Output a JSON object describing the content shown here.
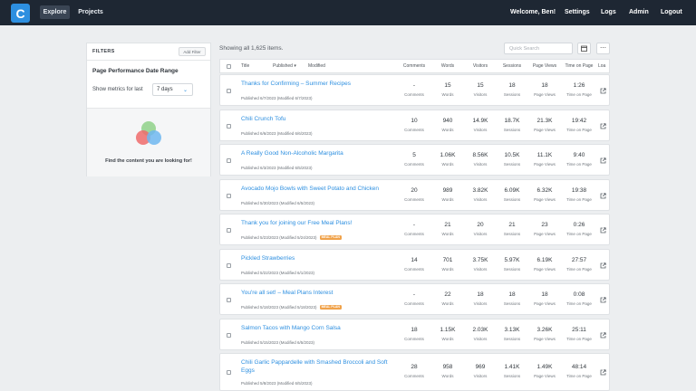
{
  "nav": {
    "logo_letter": "C",
    "tabs": [
      {
        "label": "Explore"
      },
      {
        "label": "Projects"
      }
    ],
    "greeting": "Welcome, Ben!",
    "links": [
      {
        "label": "Settings"
      },
      {
        "label": "Logs"
      },
      {
        "label": "Admin"
      },
      {
        "label": "Logout"
      }
    ]
  },
  "filters": {
    "title": "FILTERS",
    "add_filter": "Add Filter",
    "range_title": "Page Performance Date Range",
    "show_label": "Show metrics for last",
    "days_value": "7 days",
    "find_text": "Find the content you are looking for!"
  },
  "main": {
    "showing": "Showing all 1,625 items.",
    "search_placeholder": "Quick Search",
    "columns": {
      "title": "Title",
      "published": "Published ▾",
      "modified": "Modified",
      "comments": "Comments",
      "words": "Words",
      "visitors": "Visitors",
      "sessions": "Sessions",
      "page_views": "Page Views",
      "time_on_page": "Time on Page",
      "extra": "Loa"
    },
    "metric_labels": {
      "comments": "Comments",
      "words": "Words",
      "visitors": "Visitors",
      "sessions": "Sessions",
      "page_views": "Page Views",
      "time_on_page": "Time on Page"
    },
    "rows": [
      {
        "title": "Thanks for Confirming – Summer Recipes",
        "meta": "Published 6/7/2023 (Modified 6/7/2023)",
        "tag": "",
        "comments": "-",
        "words": "15",
        "visitors": "15",
        "sessions": "18",
        "page_views": "18",
        "time_on_page": "1:26"
      },
      {
        "title": "Chili Crunch Tofu",
        "meta": "Published 6/6/2023 (Modified 6/6/2023)",
        "tag": "",
        "comments": "10",
        "words": "940",
        "visitors": "14.9K",
        "sessions": "18.7K",
        "page_views": "21.3K",
        "time_on_page": "19:42"
      },
      {
        "title": "A Really Good Non-Alcoholic Margarita",
        "meta": "Published 6/3/2023 (Modified 6/5/2023)",
        "tag": "",
        "comments": "5",
        "words": "1.06K",
        "visitors": "8.56K",
        "sessions": "10.5K",
        "page_views": "11.1K",
        "time_on_page": "9:40"
      },
      {
        "title": "Avocado Mojo Bowls with Sweet Potato and Chicken",
        "meta": "Published 5/30/2023 (Modified 6/5/2023)",
        "tag": "",
        "comments": "20",
        "words": "989",
        "visitors": "3.82K",
        "sessions": "6.09K",
        "page_views": "6.32K",
        "time_on_page": "19:38"
      },
      {
        "title": "Thank you for joining our Free Meal Plans!",
        "meta": "Published 5/23/2023 (Modified 5/24/2023)",
        "tag": "MEAL PLAN",
        "comments": "-",
        "words": "21",
        "visitors": "20",
        "sessions": "21",
        "page_views": "23",
        "time_on_page": "0:26"
      },
      {
        "title": "Pickled Strawberries",
        "meta": "Published 5/22/2023 (Modified 6/1/2023)",
        "tag": "",
        "comments": "14",
        "words": "701",
        "visitors": "3.75K",
        "sessions": "5.97K",
        "page_views": "6.19K",
        "time_on_page": "27:57"
      },
      {
        "title": "You're all set! – Meal Plans Interest",
        "meta": "Published 5/18/2023 (Modified 5/18/2023)",
        "tag": "MEAL PLAN",
        "comments": "-",
        "words": "22",
        "visitors": "18",
        "sessions": "18",
        "page_views": "18",
        "time_on_page": "0:08"
      },
      {
        "title": "Salmon Tacos with Mango Corn Salsa",
        "meta": "Published 5/15/2023 (Modified 6/5/2023)",
        "tag": "",
        "comments": "18",
        "words": "1.15K",
        "visitors": "2.03K",
        "sessions": "3.13K",
        "page_views": "3.26K",
        "time_on_page": "25:11"
      },
      {
        "title": "Chili Garlic Pappardelle with Smashed Broccoli and Soft Eggs",
        "meta": "Published 5/8/2023 (Modified 6/5/2023)",
        "tag": "",
        "comments": "28",
        "words": "958",
        "visitors": "969",
        "sessions": "1.41K",
        "page_views": "1.49K",
        "time_on_page": "48:14"
      }
    ]
  },
  "colors": {
    "accent": "#2d8fe0",
    "nav_bg": "#1e2733",
    "tag": "#f0a24a"
  }
}
